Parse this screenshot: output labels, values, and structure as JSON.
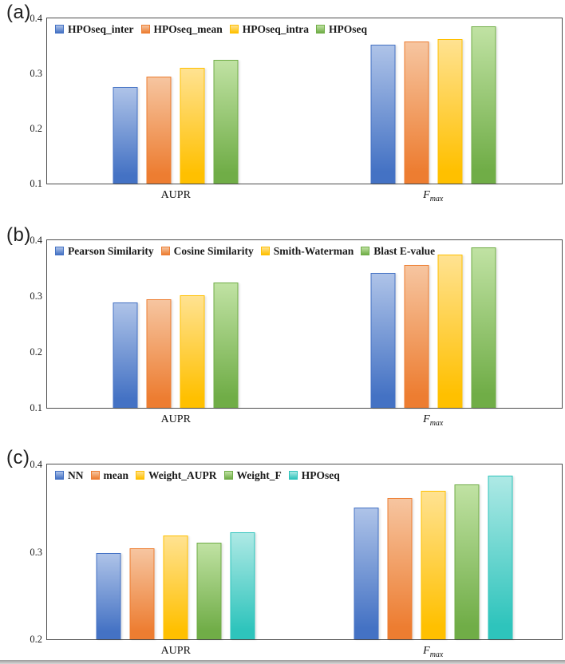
{
  "figure": {
    "panel_letters": [
      "(a)",
      "(b)",
      "(c)"
    ],
    "frame_color": "#4d4d4d",
    "background": "#ffffff"
  },
  "chart_data": [
    {
      "type": "bar",
      "panel": "(a)",
      "categories": [
        "AUPR",
        "F_max"
      ],
      "series": [
        {
          "name": "HPOseq_inter",
          "color": "#4472C4",
          "color_light": "#AEC3E8",
          "values": [
            0.275,
            0.352
          ]
        },
        {
          "name": "HPOseq_mean",
          "color": "#ED7D31",
          "color_light": "#F6C5A0",
          "values": [
            0.295,
            0.358
          ]
        },
        {
          "name": "HPOseq_intra",
          "color": "#FFC000",
          "color_light": "#FFE291",
          "values": [
            0.31,
            0.362
          ]
        },
        {
          "name": "HPOseq",
          "color": "#70AD47",
          "color_light": "#C0E2A3",
          "values": [
            0.325,
            0.386
          ]
        }
      ],
      "ylim": [
        0.1,
        0.4
      ],
      "yticks": [
        0.1,
        0.2,
        0.3,
        0.4
      ],
      "grid": false,
      "legend_position": "top-left-inside"
    },
    {
      "type": "bar",
      "panel": "(b)",
      "categories": [
        "AUPR",
        "F_max"
      ],
      "series": [
        {
          "name": "Pearson Similarity",
          "color": "#4472C4",
          "color_light": "#AEC3E8",
          "values": [
            0.288,
            0.342
          ]
        },
        {
          "name": "Cosine Similarity",
          "color": "#ED7D31",
          "color_light": "#F6C5A0",
          "values": [
            0.294,
            0.356
          ]
        },
        {
          "name": "Smith-Waterman",
          "color": "#FFC000",
          "color_light": "#FFE291",
          "values": [
            0.302,
            0.374
          ]
        },
        {
          "name": "Blast E-value",
          "color": "#70AD47",
          "color_light": "#C0E2A3",
          "values": [
            0.324,
            0.387
          ]
        }
      ],
      "ylim": [
        0.1,
        0.4
      ],
      "yticks": [
        0.1,
        0.2,
        0.3,
        0.4
      ],
      "grid": false,
      "legend_position": "top-left-inside"
    },
    {
      "type": "bar",
      "panel": "(c)",
      "categories": [
        "AUPR",
        "F_max"
      ],
      "series": [
        {
          "name": "NN",
          "color": "#4472C4",
          "color_light": "#AEC3E8",
          "values": [
            0.299,
            0.351
          ]
        },
        {
          "name": "mean",
          "color": "#ED7D31",
          "color_light": "#F6C5A0",
          "values": [
            0.304,
            0.362
          ]
        },
        {
          "name": "Weight_AUPR",
          "color": "#FFC000",
          "color_light": "#FFE291",
          "values": [
            0.319,
            0.37
          ]
        },
        {
          "name": "Weight_F",
          "color": "#70AD47",
          "color_light": "#C0E2A3",
          "values": [
            0.311,
            0.377
          ]
        },
        {
          "name": "HPOseq",
          "color": "#2EC4BC",
          "color_light": "#AEE9E5",
          "values": [
            0.322,
            0.387
          ]
        }
      ],
      "ylim": [
        0.2,
        0.4
      ],
      "yticks": [
        0.2,
        0.3,
        0.4
      ],
      "grid": false,
      "legend_position": "top-left-inside"
    }
  ]
}
